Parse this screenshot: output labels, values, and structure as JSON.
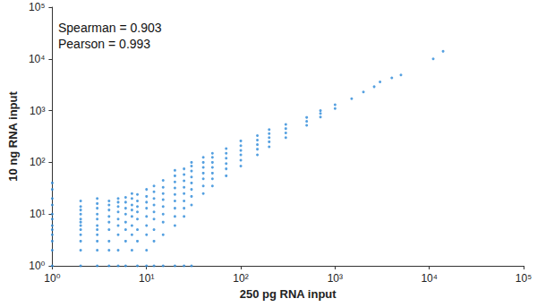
{
  "chart_data": {
    "type": "scatter",
    "x_label": "250 pg RNA input",
    "y_label": "10 ng RNA input",
    "annotations": [
      "Spearman = 0.903",
      "Pearson = 0.993"
    ],
    "log": true,
    "grid": false,
    "color": "#2b88d8",
    "marker": "circle",
    "xlim": [
      1,
      100000
    ],
    "ylim": [
      1,
      100000
    ],
    "xticks": [
      {
        "value": 1,
        "label": "10⁰"
      },
      {
        "value": 10,
        "label": "10¹"
      },
      {
        "value": 100,
        "label": "10²"
      },
      {
        "value": 1000,
        "label": "10³"
      },
      {
        "value": 10000,
        "label": "10⁴"
      },
      {
        "value": 100000,
        "label": "10⁵"
      }
    ],
    "yticks": [
      {
        "value": 1,
        "label": "10⁰"
      },
      {
        "value": 10,
        "label": "10¹"
      },
      {
        "value": 100,
        "label": "10²"
      },
      {
        "value": 1000,
        "label": "10³"
      },
      {
        "value": 10000,
        "label": "10⁴"
      },
      {
        "value": 100000,
        "label": "10⁵"
      }
    ],
    "x": [
      1,
      1,
      1,
      1,
      1,
      1,
      1,
      1,
      1,
      1,
      1,
      1,
      2,
      2,
      2,
      2,
      2,
      2,
      2,
      2,
      2,
      2,
      2,
      2,
      3,
      3,
      3,
      3,
      3,
      3,
      3,
      3,
      3,
      3,
      3,
      4,
      4,
      4,
      4,
      4,
      4,
      4,
      4,
      4,
      5,
      5,
      5,
      5,
      5,
      5,
      5,
      5,
      5,
      6,
      6,
      6,
      6,
      6,
      6,
      6,
      6,
      7,
      7,
      7,
      7,
      7,
      7,
      7,
      7,
      8,
      8,
      8,
      8,
      8,
      8,
      8,
      8,
      10,
      10,
      10,
      10,
      10,
      10,
      10,
      10,
      10,
      12,
      12,
      12,
      12,
      12,
      12,
      12,
      12,
      12,
      15,
      15,
      15,
      15,
      15,
      15,
      15,
      15,
      15,
      20,
      20,
      20,
      20,
      20,
      20,
      20,
      20,
      20,
      20,
      25,
      25,
      25,
      25,
      25,
      25,
      25,
      25,
      25,
      30,
      30,
      30,
      30,
      30,
      30,
      30,
      30,
      30,
      40,
      40,
      40,
      40,
      40,
      40,
      40,
      50,
      50,
      50,
      50,
      50,
      50,
      50,
      70,
      70,
      70,
      70,
      70,
      70,
      100,
      100,
      100,
      100,
      100,
      100,
      150,
      150,
      150,
      150,
      150,
      200,
      200,
      200,
      200,
      200,
      300,
      300,
      300,
      300,
      500,
      500,
      500,
      700,
      700,
      700,
      1000,
      1000,
      1500,
      2000,
      2600,
      3000,
      4000,
      5000,
      11000,
      14000
    ],
    "values": [
      1,
      2,
      3,
      4,
      5,
      6,
      8,
      10,
      15,
      20,
      30,
      40,
      1,
      2,
      3,
      4,
      5,
      6,
      7,
      8,
      10,
      12,
      14,
      18,
      1,
      2,
      3,
      4,
      5,
      6,
      8,
      10,
      13,
      16,
      20,
      1,
      2,
      3,
      5,
      7,
      9,
      12,
      15,
      18,
      1,
      2,
      4,
      6,
      8,
      11,
      14,
      17,
      20,
      1,
      3,
      5,
      7,
      10,
      13,
      17,
      21,
      2,
      4,
      6,
      9,
      12,
      15,
      20,
      25,
      1,
      3,
      5,
      8,
      11,
      14,
      18,
      24,
      1,
      2,
      4,
      6,
      9,
      13,
      17,
      22,
      30,
      1,
      3,
      5,
      8,
      11,
      15,
      20,
      27,
      35,
      1,
      4,
      7,
      10,
      14,
      19,
      25,
      33,
      45,
      1,
      6,
      9,
      13,
      18,
      24,
      32,
      42,
      55,
      70,
      1,
      9,
      13,
      18,
      25,
      33,
      44,
      58,
      75,
      1,
      15,
      22,
      30,
      40,
      52,
      68,
      85,
      100,
      25,
      35,
      48,
      62,
      80,
      100,
      125,
      35,
      48,
      62,
      80,
      100,
      125,
      150,
      55,
      75,
      95,
      120,
      150,
      185,
      85,
      110,
      140,
      170,
      210,
      260,
      140,
      180,
      220,
      270,
      330,
      200,
      250,
      300,
      360,
      430,
      300,
      370,
      450,
      540,
      520,
      620,
      740,
      750,
      880,
      1000,
      1100,
      1300,
      1700,
      2300,
      2900,
      3600,
      4300,
      4900,
      10000,
      14000
    ]
  }
}
